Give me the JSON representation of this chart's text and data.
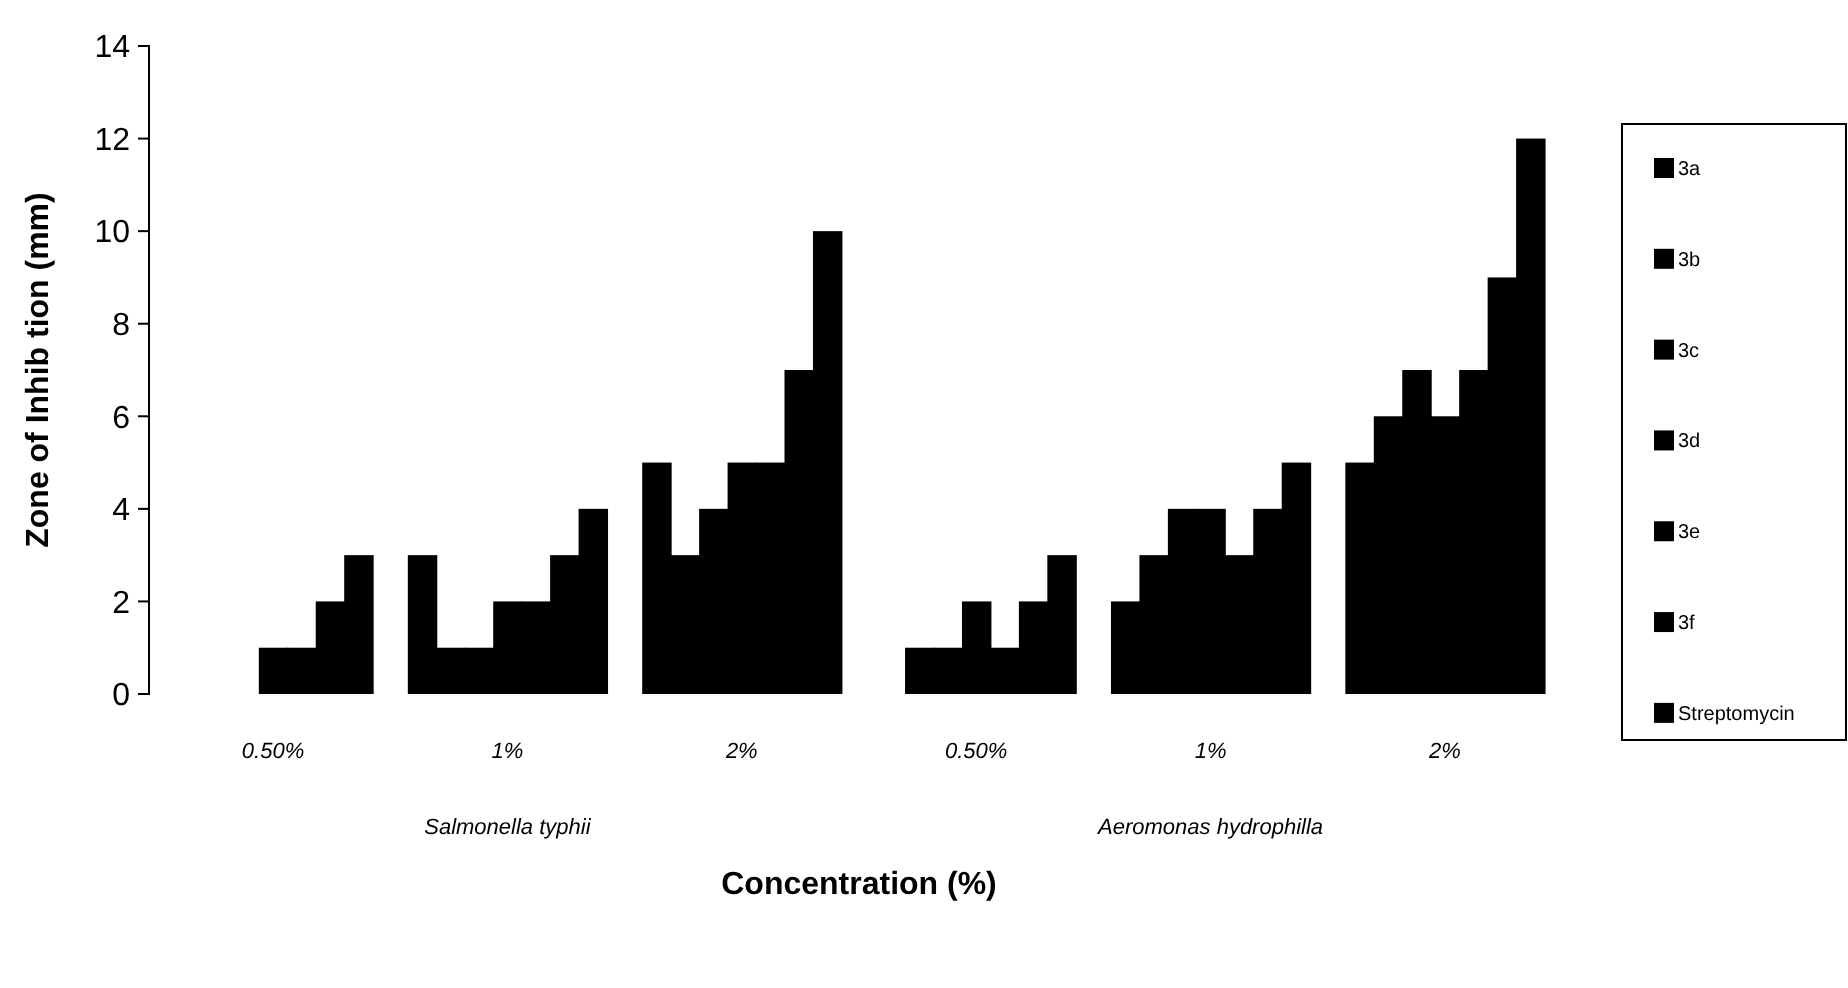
{
  "chart_data": {
    "type": "bar",
    "xlabel": "Concentration (%)",
    "ylabel": "Zone of Inhib tion (mm)",
    "categories": [
      "0.50%",
      "1%",
      "2%",
      "0.50%",
      "1%",
      "2%"
    ],
    "annotations": [
      "Salmonella typhii",
      "Aeromonas hydrophilla"
    ],
    "ylim": [
      0,
      14
    ],
    "yticks": [
      0,
      2,
      4,
      6,
      8,
      10,
      12,
      14
    ],
    "grid": false,
    "legend": "right",
    "series": [
      {
        "name": "3a",
        "color": "#000000",
        "values": [
          0,
          3,
          5,
          0,
          2,
          5
        ]
      },
      {
        "name": "3b",
        "color": "#000000",
        "values": [
          0,
          1,
          3,
          1,
          3,
          6
        ]
      },
      {
        "name": "3c",
        "color": "#000000",
        "values": [
          0,
          1,
          4,
          1,
          4,
          7
        ]
      },
      {
        "name": "3d",
        "color": "#000000",
        "values": [
          1,
          2,
          5,
          2,
          4,
          6
        ]
      },
      {
        "name": "3e",
        "color": "#000000",
        "values": [
          1,
          2,
          5,
          1,
          3,
          7
        ]
      },
      {
        "name": "3f",
        "color": "#000000",
        "values": [
          2,
          3,
          7,
          2,
          4,
          9
        ]
      },
      {
        "name": "Streptomycin",
        "color": "#000000",
        "values": [
          3,
          4,
          10,
          3,
          5,
          12
        ]
      }
    ]
  }
}
